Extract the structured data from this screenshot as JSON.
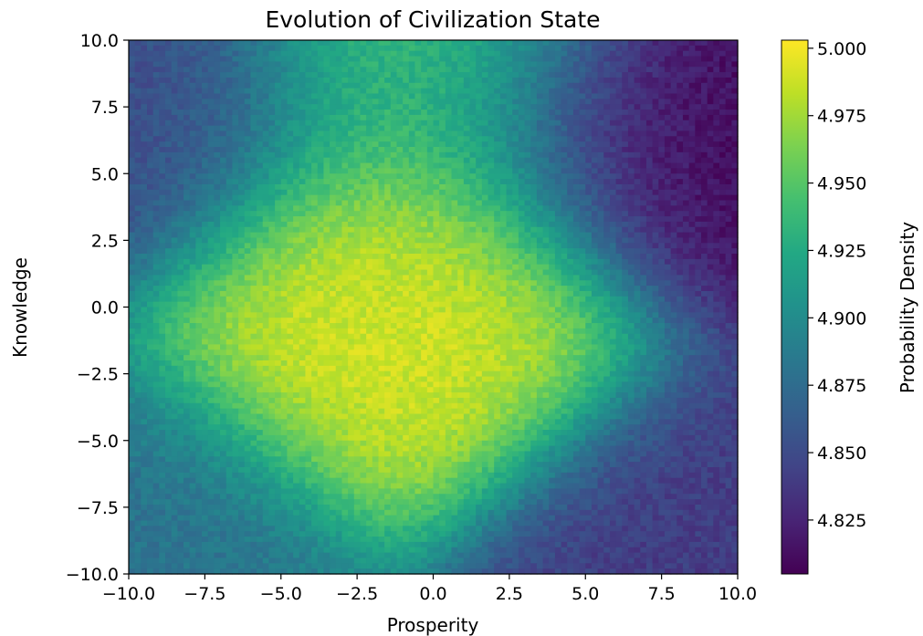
{
  "chart_data": {
    "type": "heatmap",
    "title": "Evolution of Civilization State",
    "xlabel": "Prosperity",
    "ylabel": "Knowledge",
    "xlim": [
      -10.0,
      10.0
    ],
    "ylim": [
      -10.0,
      10.0
    ],
    "x_ticks": [
      -10.0,
      -7.5,
      -5.0,
      -2.5,
      0.0,
      2.5,
      5.0,
      7.5,
      10.0
    ],
    "x_tick_labels": [
      "−10.0",
      "−7.5",
      "−5.0",
      "−2.5",
      "0.0",
      "2.5",
      "5.0",
      "7.5",
      "10.0"
    ],
    "y_ticks": [
      10.0,
      7.5,
      5.0,
      2.5,
      0.0,
      -2.5,
      -5.0,
      -7.5,
      -10.0
    ],
    "y_tick_labels": [
      "10.0",
      "7.5",
      "5.0",
      "2.5",
      "0.0",
      "−2.5",
      "−5.0",
      "−7.5",
      "−10.0"
    ],
    "colorbar": {
      "label": "Probability Density",
      "range": [
        4.805,
        5.003
      ],
      "ticks": [
        5.0,
        4.975,
        4.95,
        4.925,
        4.9,
        4.875,
        4.85,
        4.825
      ],
      "tick_labels": [
        "5.000",
        "4.975",
        "4.950",
        "4.925",
        "4.900",
        "4.875",
        "4.850",
        "4.825"
      ],
      "colormap": "viridis"
    },
    "grid": false,
    "resolution": [
      100,
      100
    ],
    "regions": [
      {
        "x": -1.0,
        "y": -0.5,
        "value": 4.99
      },
      {
        "x": 8.0,
        "y": 7.5,
        "value": 4.81
      },
      {
        "x": -10.0,
        "y": 8.5,
        "value": 4.85
      },
      {
        "x": 8.5,
        "y": -10.0,
        "value": 4.84
      },
      {
        "x": -10.0,
        "y": -10.0,
        "value": 4.88
      },
      {
        "x": 0.0,
        "y": 10.0,
        "value": 4.94
      }
    ]
  }
}
